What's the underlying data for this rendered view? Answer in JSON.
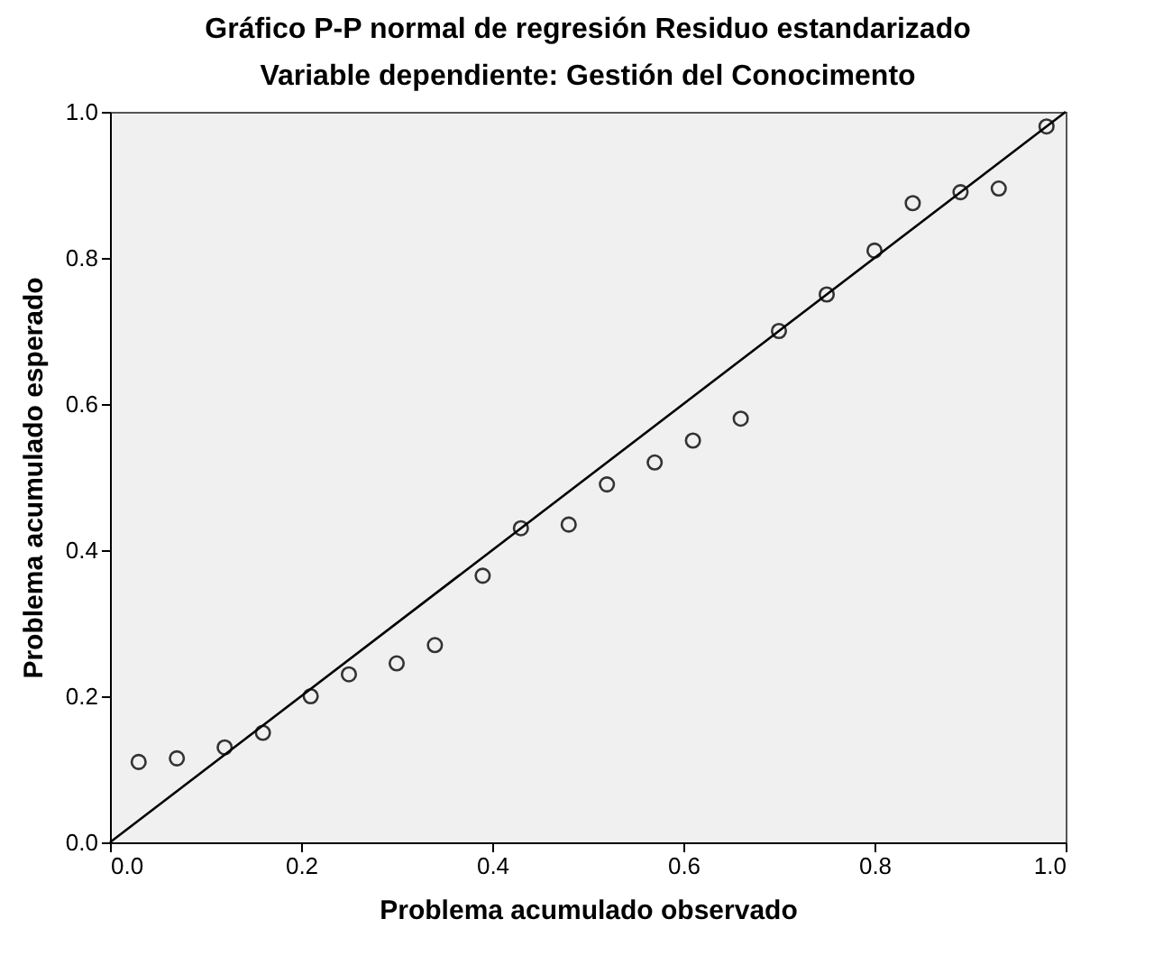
{
  "chart_data": {
    "type": "scatter",
    "title": "Gráfico P-P normal de regresión Residuo estandarizado",
    "subtitle": "Variable dependiente: Gestión del Conocimento",
    "xlabel": "Problema acumulado observado",
    "ylabel": "Problema acumulado esperado",
    "x": [
      0.03,
      0.07,
      0.12,
      0.16,
      0.21,
      0.25,
      0.3,
      0.34,
      0.39,
      0.43,
      0.48,
      0.52,
      0.57,
      0.61,
      0.66,
      0.7,
      0.75,
      0.8,
      0.84,
      0.89,
      0.93,
      0.98
    ],
    "series": [
      {
        "color": "#333333",
        "marker": "circle",
        "values": [
          0.11,
          0.115,
          0.13,
          0.15,
          0.2,
          0.23,
          0.245,
          0.27,
          0.365,
          0.43,
          0.435,
          0.49,
          0.52,
          0.55,
          0.58,
          0.7,
          0.75,
          0.81,
          0.875,
          0.89,
          0.895,
          0.98
        ]
      },
      {
        "type": "line",
        "color": "#000000",
        "x": [
          0,
          1
        ],
        "values": [
          0,
          1
        ]
      }
    ],
    "xlim": [
      0,
      1
    ],
    "ylim": [
      0,
      1
    ],
    "xticks": [
      {
        "value": 0,
        "label": "0.0"
      },
      {
        "value": 0.2,
        "label": "0.2"
      },
      {
        "value": 0.4,
        "label": "0.4"
      },
      {
        "value": 0.6,
        "label": "0.6"
      },
      {
        "value": 0.8,
        "label": "0.8"
      },
      {
        "value": 1,
        "label": "1.0"
      }
    ],
    "yticks": [
      {
        "value": 0,
        "label": "0.0"
      },
      {
        "value": 0.2,
        "label": "0.2"
      },
      {
        "value": 0.4,
        "label": "0.4"
      },
      {
        "value": 0.6,
        "label": "0.6"
      },
      {
        "value": 0.8,
        "label": "0.8"
      },
      {
        "value": 1,
        "label": "1.0"
      }
    ],
    "grid": false
  }
}
